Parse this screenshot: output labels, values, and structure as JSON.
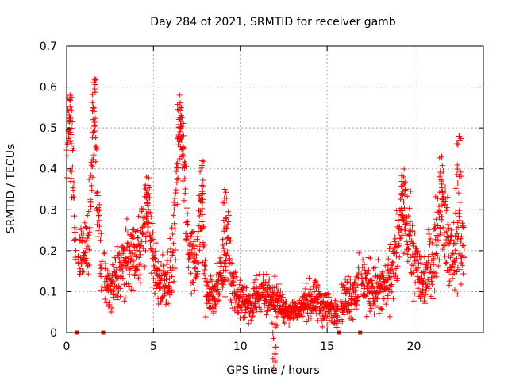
{
  "chart_data": {
    "type": "scatter",
    "title": "Day 284 of 2021, SRMTID for receiver gamb",
    "xlabel": "GPS time / hours",
    "ylabel": "SRMTID / TECUs",
    "xlim": [
      0,
      24
    ],
    "ylim": [
      0,
      0.7
    ],
    "xticks": [
      0,
      5,
      10,
      15,
      20
    ],
    "xtick_labels": [
      "0",
      "5",
      "10",
      "15",
      "20"
    ],
    "yticks": [
      0,
      0.1,
      0.2,
      0.3,
      0.4,
      0.5,
      0.6,
      0.7
    ],
    "ytick_labels": [
      "0",
      "0.1",
      "0.2",
      "0.3",
      "0.4",
      "0.5",
      "0.6",
      "0.7"
    ],
    "grid": true,
    "marker": "+",
    "color": "#ff0000",
    "series": [
      {
        "name": "SRMTID",
        "envelope": {
          "x": [
            0.0,
            0.1,
            0.3,
            0.5,
            0.8,
            1.0,
            1.3,
            1.6,
            1.8,
            2.0,
            2.3,
            2.6,
            3.0,
            3.5,
            4.0,
            4.5,
            4.7,
            5.0,
            5.5,
            6.0,
            6.3,
            6.5,
            6.8,
            7.0,
            7.5,
            7.8,
            8.0,
            8.5,
            9.0,
            9.3,
            9.6,
            10.0,
            10.5,
            11.0,
            11.5,
            12.0,
            12.5,
            13.0,
            13.5,
            14.0,
            14.5,
            15.0,
            15.5,
            16.0,
            16.5,
            17.0,
            17.5,
            18.0,
            18.5,
            19.0,
            19.4,
            19.8,
            20.2,
            20.5,
            21.0,
            21.3,
            21.6,
            22.0,
            22.3,
            22.6,
            22.9
          ],
          "center": [
            0.45,
            0.55,
            0.45,
            0.22,
            0.2,
            0.18,
            0.25,
            0.55,
            0.3,
            0.15,
            0.12,
            0.1,
            0.15,
            0.18,
            0.2,
            0.25,
            0.33,
            0.15,
            0.12,
            0.15,
            0.3,
            0.5,
            0.4,
            0.2,
            0.18,
            0.3,
            0.1,
            0.09,
            0.15,
            0.22,
            0.1,
            0.08,
            0.07,
            0.09,
            0.1,
            0.08,
            0.06,
            0.05,
            0.06,
            0.08,
            0.07,
            0.06,
            0.05,
            0.08,
            0.1,
            0.12,
            0.11,
            0.1,
            0.12,
            0.2,
            0.3,
            0.22,
            0.15,
            0.12,
            0.18,
            0.22,
            0.35,
            0.2,
            0.18,
            0.25,
            0.17
          ],
          "spread": [
            0.06,
            0.05,
            0.08,
            0.04,
            0.04,
            0.05,
            0.06,
            0.07,
            0.06,
            0.05,
            0.04,
            0.04,
            0.05,
            0.05,
            0.05,
            0.06,
            0.05,
            0.05,
            0.04,
            0.05,
            0.07,
            0.05,
            0.07,
            0.05,
            0.05,
            0.07,
            0.04,
            0.03,
            0.04,
            0.06,
            0.04,
            0.03,
            0.03,
            0.03,
            0.03,
            0.03,
            0.02,
            0.02,
            0.02,
            0.03,
            0.03,
            0.03,
            0.02,
            0.03,
            0.04,
            0.04,
            0.04,
            0.04,
            0.04,
            0.06,
            0.06,
            0.06,
            0.05,
            0.04,
            0.06,
            0.06,
            0.08,
            0.06,
            0.06,
            0.08,
            0.05
          ]
        },
        "peaks": [
          {
            "x": 0.2,
            "y": 0.58
          },
          {
            "x": 1.6,
            "y": 0.62
          },
          {
            "x": 6.5,
            "y": 0.58
          },
          {
            "x": 6.6,
            "y": 0.53
          },
          {
            "x": 4.6,
            "y": 0.38
          },
          {
            "x": 7.8,
            "y": 0.42
          },
          {
            "x": 9.1,
            "y": 0.35
          },
          {
            "x": 19.4,
            "y": 0.38
          },
          {
            "x": 21.6,
            "y": 0.43
          },
          {
            "x": 22.6,
            "y": 0.48
          },
          {
            "x": 12.0,
            "y": 0.02
          }
        ]
      }
    ],
    "data_gaps_x": [
      0.6,
      2.1,
      15.7,
      16.9
    ]
  }
}
